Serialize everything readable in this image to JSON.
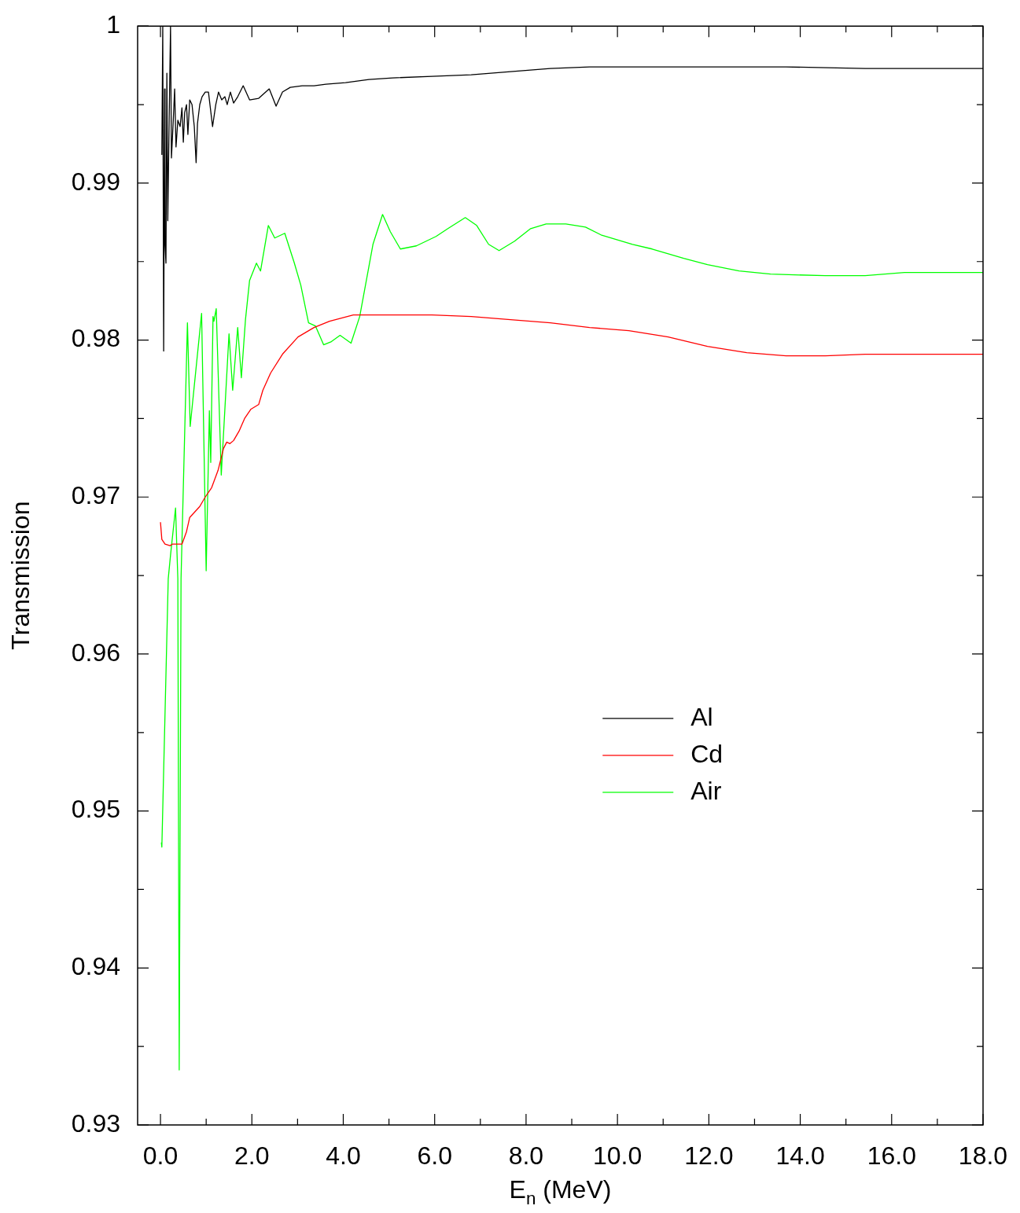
{
  "chart_data": {
    "type": "line",
    "xlabel": "E$_{n}$ (MeV)",
    "ylabel": "Transmission",
    "xlim": [
      -0.5,
      18.0
    ],
    "xticks": [
      {
        "value": 0,
        "label": "0.0"
      },
      {
        "value": 1,
        "label": null
      },
      {
        "value": 2,
        "label": "2.0"
      },
      {
        "value": 3,
        "label": null
      },
      {
        "value": 4,
        "label": "4.0"
      },
      {
        "value": 5,
        "label": null
      },
      {
        "value": 6,
        "label": "6.0"
      },
      {
        "value": 7,
        "label": null
      },
      {
        "value": 8,
        "label": "8.0"
      },
      {
        "value": 9,
        "label": null
      },
      {
        "value": 10,
        "label": "10.0"
      },
      {
        "value": 11,
        "label": null
      },
      {
        "value": 12,
        "label": "12.0"
      },
      {
        "value": 13,
        "label": null
      },
      {
        "value": 14,
        "label": "14.0"
      },
      {
        "value": 15,
        "label": null
      },
      {
        "value": 16,
        "label": "16.0"
      },
      {
        "value": 17,
        "label": null
      },
      {
        "value": 18,
        "label": "18.0"
      }
    ],
    "ylim": [
      0.93,
      1
    ],
    "yticks": [
      0.93,
      {
        "value": 0.935,
        "label": null
      },
      0.94,
      {
        "value": 0.945,
        "label": null
      },
      0.95,
      {
        "value": 0.955,
        "label": null
      },
      0.96,
      {
        "value": 0.965,
        "label": null
      },
      0.97,
      {
        "value": 0.975,
        "label": null
      },
      0.98,
      {
        "value": 0.985,
        "label": null
      },
      0.99,
      {
        "value": 0.995,
        "label": null
      },
      1
    ],
    "grid": false,
    "legend": "center",
    "marker": "none",
    "line_style": "solid",
    "series": [
      {
        "name": "Al",
        "color": "#000000",
        "x": [
          0.03,
          0.05,
          0.07,
          0.09,
          0.1,
          0.12,
          0.14,
          0.16,
          0.19,
          0.22,
          0.24,
          0.28,
          0.31,
          0.34,
          0.38,
          0.43,
          0.47,
          0.5,
          0.53,
          0.57,
          0.6,
          0.64,
          0.69,
          0.74,
          0.78,
          0.81,
          0.86,
          0.91,
          0.98,
          1.05,
          1.14,
          1.21,
          1.27,
          1.34,
          1.41,
          1.46,
          1.53,
          1.6,
          1.69,
          1.81,
          1.95,
          2.15,
          2.38,
          2.53,
          2.67,
          2.84,
          3.1,
          3.36,
          3.62,
          4.05,
          4.56,
          5.08,
          5.94,
          6.8,
          7.66,
          8.53,
          9.39,
          10.25,
          11.97,
          13.69,
          15.42,
          18.0
        ],
        "values": [
          0.9918,
          1.0,
          0.9793,
          0.996,
          0.9861,
          0.9849,
          0.997,
          0.9876,
          0.994,
          1.0,
          0.9916,
          0.994,
          0.996,
          0.9923,
          0.994,
          0.9936,
          0.9948,
          0.9926,
          0.9945,
          0.995,
          0.9931,
          0.9953,
          0.995,
          0.9936,
          0.9913,
          0.9938,
          0.995,
          0.9955,
          0.9958,
          0.9958,
          0.9936,
          0.995,
          0.9958,
          0.9953,
          0.9955,
          0.995,
          0.9958,
          0.9951,
          0.9955,
          0.9962,
          0.9953,
          0.9954,
          0.996,
          0.9949,
          0.9958,
          0.9961,
          0.9962,
          0.9962,
          0.9963,
          0.9964,
          0.9966,
          0.9967,
          0.9968,
          0.9969,
          0.9971,
          0.9973,
          0.9974,
          0.9974,
          0.9974,
          0.9974,
          0.9973,
          0.9973
        ]
      },
      {
        "name": "Cd",
        "color": "#ff0000",
        "x": [
          0.0,
          0.03,
          0.1,
          0.21,
          0.26,
          0.47,
          0.57,
          0.64,
          0.86,
          0.98,
          1.12,
          1.26,
          1.38,
          1.45,
          1.52,
          1.6,
          1.72,
          1.84,
          1.98,
          2.15,
          2.24,
          2.41,
          2.67,
          3.01,
          3.36,
          3.7,
          4.22,
          5.08,
          5.94,
          6.8,
          7.66,
          8.53,
          9.39,
          10.25,
          11.11,
          11.97,
          12.83,
          13.69,
          14.55,
          15.42,
          18.0
        ],
        "values": [
          0.9684,
          0.9673,
          0.967,
          0.9669,
          0.967,
          0.967,
          0.9678,
          0.9687,
          0.9694,
          0.97,
          0.9706,
          0.9717,
          0.9731,
          0.9735,
          0.9734,
          0.9736,
          0.9742,
          0.975,
          0.9756,
          0.9759,
          0.9768,
          0.9779,
          0.9791,
          0.9802,
          0.9808,
          0.9812,
          0.9816,
          0.9816,
          0.9816,
          0.9815,
          0.9813,
          0.9811,
          0.9808,
          0.9806,
          0.9802,
          0.9796,
          0.9792,
          0.979,
          0.979,
          0.9791,
          0.9791
        ]
      },
      {
        "name": "Air",
        "color": "#00ff00",
        "x": [
          0.02,
          0.03,
          0.17,
          0.22,
          0.33,
          0.38,
          0.41,
          0.45,
          0.59,
          0.65,
          0.9,
          1.0,
          1.07,
          1.1,
          1.15,
          1.17,
          1.22,
          1.33,
          1.5,
          1.58,
          1.69,
          1.77,
          1.86,
          1.95,
          2.1,
          2.19,
          2.36,
          2.5,
          2.72,
          2.93,
          3.07,
          3.24,
          3.39,
          3.57,
          3.74,
          3.93,
          4.17,
          4.36,
          4.65,
          4.86,
          5.03,
          5.25,
          5.6,
          6.03,
          6.29,
          6.67,
          6.92,
          7.18,
          7.41,
          7.75,
          8.1,
          8.44,
          8.87,
          9.3,
          9.64,
          10.33,
          10.76,
          11.45,
          11.97,
          12.66,
          13.35,
          14.55,
          15.42,
          16.28,
          17.72,
          18.0
        ],
        "values": [
          0.948,
          0.9477,
          0.9648,
          0.9663,
          0.9693,
          0.9648,
          0.9335,
          0.9648,
          0.9811,
          0.9745,
          0.9817,
          0.9653,
          0.9755,
          0.9722,
          0.9815,
          0.9812,
          0.982,
          0.9714,
          0.9804,
          0.9768,
          0.9808,
          0.9776,
          0.9813,
          0.9838,
          0.9849,
          0.9844,
          0.9873,
          0.9865,
          0.9868,
          0.9849,
          0.9835,
          0.9811,
          0.9809,
          0.9797,
          0.9799,
          0.9803,
          0.9798,
          0.9815,
          0.9861,
          0.988,
          0.9869,
          0.9858,
          0.986,
          0.9866,
          0.9871,
          0.9878,
          0.9873,
          0.9861,
          0.9857,
          0.9863,
          0.9871,
          0.9874,
          0.9874,
          0.9872,
          0.9867,
          0.9861,
          0.9858,
          0.9852,
          0.9848,
          0.9844,
          0.9842,
          0.9841,
          0.9841,
          0.9843,
          0.9843,
          0.9843
        ]
      }
    ]
  }
}
